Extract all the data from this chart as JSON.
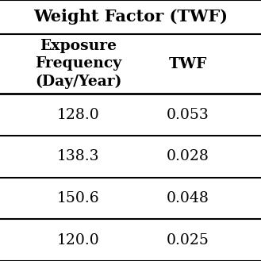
{
  "title": "Weight Factor (TWF)",
  "col1_header": "Exposure\nFrequency\n(Day/Year)",
  "col2_header": "TWF",
  "rows": [
    [
      "128.0",
      "0.053"
    ],
    [
      "138.3",
      "0.028"
    ],
    [
      "150.6",
      "0.048"
    ],
    [
      "120.0",
      "0.025"
    ]
  ],
  "bg_color": "#ffffff",
  "text_color": "#000000",
  "header_fontsize": 13.5,
  "data_fontsize": 13.5,
  "title_fontsize": 15
}
